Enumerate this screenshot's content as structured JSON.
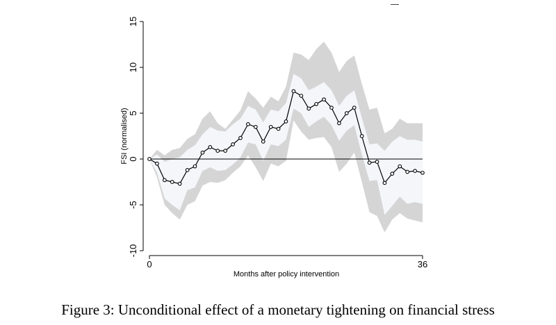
{
  "caption": "Figure 3: Unconditional effect of a monetary tightening on financial stress",
  "chart_data": {
    "type": "line",
    "title": "",
    "xlabel": "Months after policy intervention",
    "ylabel": "FSI (normalised)",
    "xlim": [
      0,
      36
    ],
    "ylim": [
      -10,
      15
    ],
    "x_ticks": [
      0,
      36
    ],
    "y_ticks": [
      -10,
      -5,
      0,
      5,
      10,
      15
    ],
    "grid": false,
    "legend": "none",
    "x": [
      0,
      1,
      2,
      3,
      4,
      5,
      6,
      7,
      8,
      9,
      10,
      11,
      12,
      13,
      14,
      15,
      16,
      17,
      18,
      19,
      20,
      21,
      22,
      23,
      24,
      25,
      26,
      27,
      28,
      29,
      30,
      31,
      32,
      33,
      34,
      35,
      36
    ],
    "series": [
      {
        "role": "point_estimate",
        "color": "#000000",
        "values": [
          0,
          -0.5,
          -2.3,
          -2.5,
          -2.7,
          -1.2,
          -0.8,
          0.7,
          1.3,
          0.9,
          0.9,
          1.6,
          2.3,
          3.8,
          3.5,
          1.9,
          3.5,
          3.3,
          4.1,
          7.4,
          6.9,
          5.5,
          6.0,
          6.5,
          5.6,
          3.9,
          5.0,
          5.6,
          2.5,
          -0.4,
          -0.3,
          -2.6,
          -1.6,
          -0.8,
          -1.4,
          -1.3,
          -1.5
        ]
      },
      {
        "role": "inner_band",
        "color": "#f4f6fa",
        "upper": [
          0,
          0.5,
          -0.3,
          0.0,
          0.2,
          1.0,
          1.5,
          2.7,
          3.5,
          3.1,
          3.0,
          3.8,
          4.4,
          5.8,
          5.4,
          4.0,
          5.4,
          5.2,
          6.1,
          9.3,
          8.8,
          7.5,
          7.9,
          8.4,
          7.5,
          5.8,
          6.9,
          7.5,
          4.5,
          1.6,
          1.7,
          0.9,
          1.9,
          2.5,
          2.1,
          2.1,
          1.9
        ],
        "lower": [
          0,
          -1.5,
          -4.3,
          -5.0,
          -5.6,
          -3.4,
          -3.1,
          -1.3,
          -0.9,
          -1.3,
          -1.2,
          -0.6,
          0.2,
          1.8,
          1.6,
          -0.2,
          1.6,
          1.4,
          2.1,
          5.5,
          5.0,
          3.5,
          4.1,
          4.6,
          3.7,
          2.0,
          3.1,
          3.7,
          0.5,
          -2.4,
          -2.3,
          -6.1,
          -5.1,
          -4.1,
          -4.9,
          -4.7,
          -4.9
        ]
      },
      {
        "role": "outer_band",
        "color": "#d5d5d5",
        "upper": [
          0,
          1.0,
          0.4,
          1.0,
          1.2,
          2.2,
          2.7,
          4.4,
          5.2,
          3.9,
          3.3,
          4.3,
          5.3,
          7.4,
          6.6,
          5.6,
          6.8,
          6.3,
          7.9,
          11.6,
          11.4,
          10.8,
          12.0,
          12.8,
          11.6,
          9.5,
          10.7,
          11.3,
          8.2,
          5.4,
          5.6,
          2.8,
          3.3,
          4.4,
          3.9,
          3.9,
          3.9
        ],
        "lower": [
          0,
          -2.0,
          -5.0,
          -5.9,
          -6.6,
          -5.0,
          -4.6,
          -2.9,
          -2.5,
          -2.6,
          -2.3,
          -1.5,
          -0.8,
          0.4,
          -0.9,
          -2.4,
          -0.5,
          -0.8,
          -0.2,
          4.2,
          3.0,
          2.1,
          2.3,
          2.4,
          1.3,
          -1.4,
          -0.5,
          0.7,
          -2.5,
          -5.8,
          -6.2,
          -8.0,
          -6.6,
          -5.9,
          -6.5,
          -6.7,
          -6.9
        ]
      }
    ],
    "reference_line": {
      "y": 0,
      "color": "#000000"
    }
  }
}
